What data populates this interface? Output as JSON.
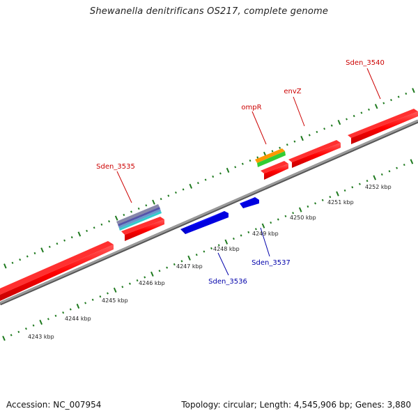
{
  "title": "Shewanella denitrificans OS217, complete genome",
  "footer": {
    "accession": "Accession: NC_007954",
    "stats": "Topology: circular; Length: 4,545,906 bp; Genes: 3,880"
  },
  "colors": {
    "forward_gene": "#ff0000",
    "reverse_gene": "#0000ff",
    "forward_label": "#cc0000",
    "reverse_label": "#0000aa",
    "tick": "#1f7a1f",
    "backbone": "#888888"
  },
  "scale_labels": [
    "4243 kbp",
    "4244 kbp",
    "4245 kbp",
    "4246 kbp",
    "4247 kbp",
    "4248 kbp",
    "4249 kbp",
    "4250 kbp",
    "4251 kbp",
    "4252 kbp"
  ],
  "gene_labels": {
    "sden_3535": "Sden_3535",
    "ompR": "ompR",
    "envZ": "envZ",
    "sden_3540": "Sden_3540",
    "sden_3536": "Sden_3536",
    "sden_3537": "Sden_3537"
  }
}
